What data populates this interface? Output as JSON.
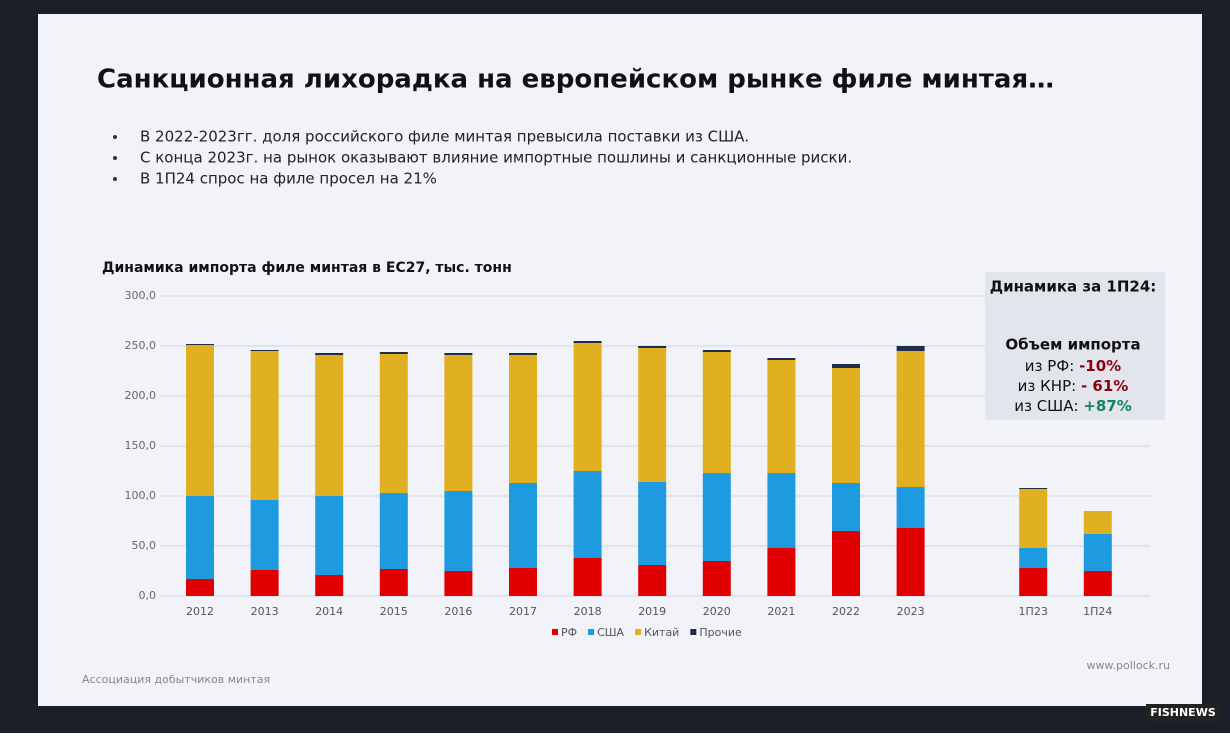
{
  "header": {
    "title": "Санкционная лихорадка на европейском рынке филе минтая…",
    "bullets": [
      "В 2022-2023гг. доля российского филе минтая превысила поставки из США.",
      "С конца 2023г. на рынок оказывают влияние импортные пошлины и санкционные риски.",
      "В 1П24 спрос на филе просел на 21%"
    ]
  },
  "chart_data": {
    "type": "stacked_bar",
    "title": "Динамика импорта филе минтая в ЕС27, тыс. тонн",
    "categories": [
      "2012",
      "2013",
      "2014",
      "2015",
      "2016",
      "2017",
      "2018",
      "2019",
      "2020",
      "2021",
      "2022",
      "2023",
      "1П23",
      "1П24"
    ],
    "series": [
      {
        "name": "РФ",
        "color": "#e00000",
        "values": [
          17,
          26,
          21,
          27,
          25,
          28,
          38,
          31,
          35,
          48,
          65,
          68,
          28,
          25
        ]
      },
      {
        "name": "США",
        "color": "#1e9be0",
        "values": [
          83,
          70,
          79,
          76,
          80,
          85,
          87,
          83,
          88,
          75,
          48,
          41,
          20,
          37
        ]
      },
      {
        "name": "Китай",
        "color": "#e0b020",
        "values": [
          151,
          149,
          141,
          139,
          136,
          128,
          128,
          134,
          121,
          113,
          115,
          136,
          59,
          23
        ]
      },
      {
        "name": "Прочие",
        "color": "#1f2d4a",
        "values": [
          1,
          1,
          2,
          2,
          2,
          2,
          2,
          2,
          2,
          2,
          4,
          5,
          1,
          0
        ]
      }
    ],
    "ylim": [
      0,
      300
    ],
    "yticks": [
      {
        "value": 0,
        "label": "0,0"
      },
      {
        "value": 50,
        "label": "50,0"
      },
      {
        "value": 100,
        "label": "100,0"
      },
      {
        "value": 150,
        "label": "150,0"
      },
      {
        "value": 200,
        "label": "200,0"
      },
      {
        "value": 250,
        "label": "250,0"
      },
      {
        "value": 300,
        "label": "300,0"
      }
    ],
    "grid": true
  },
  "sidebox": {
    "heading": "Динамика за 1П24:",
    "subheading": "Объем импорта",
    "items": [
      {
        "label": "из РФ:",
        "value": "-10%",
        "color": "#8b0010"
      },
      {
        "label": "из КНР:",
        "value": "- 61%",
        "color": "#8b0010"
      },
      {
        "label": "из США:",
        "value": "+87%",
        "color": "#13855a"
      }
    ]
  },
  "footer": {
    "left": "Ассоциация добытчиков минтая",
    "right": "www.pollock.ru"
  },
  "watermark": "FISHNEWS"
}
